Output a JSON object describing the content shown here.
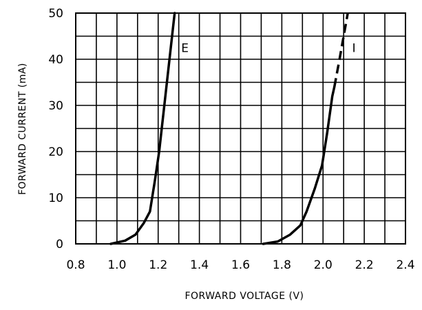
{
  "chart_data": {
    "type": "line",
    "title": "",
    "xlabel": "FORWARD VOLTAGE (V)",
    "ylabel": "FORWARD CURRENT (mA)",
    "xlim": [
      0.8,
      2.4
    ],
    "ylim": [
      0,
      50
    ],
    "x_ticks": [
      0.8,
      1.0,
      1.2,
      1.4,
      1.6,
      1.8,
      2.0,
      2.2,
      2.4
    ],
    "x_tick_labels": [
      "0.8",
      "1.0",
      "1.2",
      "1.4",
      "1.6",
      "1.8",
      "2.0",
      "2.2",
      "2.4"
    ],
    "y_ticks": [
      0,
      10,
      20,
      30,
      40,
      50
    ],
    "y_tick_labels": [
      "0",
      "10",
      "20",
      "30",
      "40",
      "50"
    ],
    "grid": true,
    "series": [
      {
        "name": "E",
        "color": "#000000",
        "points": [
          {
            "x": 0.97,
            "y": 0
          },
          {
            "x": 1.04,
            "y": 0.7
          },
          {
            "x": 1.09,
            "y": 2
          },
          {
            "x": 1.13,
            "y": 4.5
          },
          {
            "x": 1.16,
            "y": 7
          },
          {
            "x": 1.185,
            "y": 14
          },
          {
            "x": 1.205,
            "y": 20
          },
          {
            "x": 1.23,
            "y": 30
          },
          {
            "x": 1.255,
            "y": 40
          },
          {
            "x": 1.28,
            "y": 50
          }
        ]
      },
      {
        "name": "I",
        "color": "#000000",
        "points": [
          {
            "x": 1.71,
            "y": 0
          },
          {
            "x": 1.78,
            "y": 0.5
          },
          {
            "x": 1.84,
            "y": 2
          },
          {
            "x": 1.89,
            "y": 4
          },
          {
            "x": 1.92,
            "y": 7
          },
          {
            "x": 1.96,
            "y": 12
          },
          {
            "x": 1.995,
            "y": 17
          },
          {
            "x": 2.02,
            "y": 24
          },
          {
            "x": 2.045,
            "y": 32
          },
          {
            "x": 2.055,
            "y": 34
          }
        ],
        "dashed_extension": [
          {
            "x": 2.055,
            "y": 34
          },
          {
            "x": 2.08,
            "y": 40
          },
          {
            "x": 2.1,
            "y": 45
          },
          {
            "x": 2.12,
            "y": 50
          }
        ]
      }
    ],
    "curve_labels": [
      {
        "text": "E",
        "x": 1.33,
        "y": 42.5
      },
      {
        "text": "I",
        "x": 2.15,
        "y": 42.5
      }
    ]
  }
}
